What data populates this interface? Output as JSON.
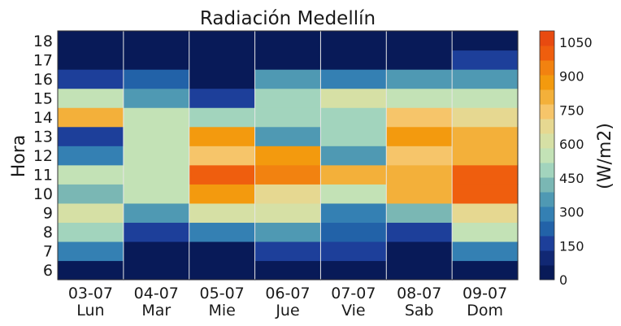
{
  "chart_data": {
    "type": "heatmap",
    "title": "Radiación Medellín",
    "ylabel": "Hora",
    "colorbar_label": "(W/m2)",
    "x_categories": [
      {
        "date": "03-07",
        "day": "Lun"
      },
      {
        "date": "04-07",
        "day": "Mar"
      },
      {
        "date": "05-07",
        "day": "Mie"
      },
      {
        "date": "06-07",
        "day": "Jue"
      },
      {
        "date": "07-07",
        "day": "Vie"
      },
      {
        "date": "08-07",
        "day": "Sab"
      },
      {
        "date": "09-07",
        "day": "Dom"
      }
    ],
    "y_categories": [
      "6",
      "7",
      "8",
      "9",
      "10",
      "11",
      "12",
      "13",
      "14",
      "15",
      "16",
      "17",
      "18"
    ],
    "values": [
      [
        60,
        10,
        10,
        10,
        10,
        10,
        60
      ],
      [
        290,
        10,
        10,
        180,
        130,
        10,
        290
      ],
      [
        500,
        150,
        290,
        340,
        220,
        180,
        540
      ],
      [
        610,
        380,
        590,
        590,
        290,
        430,
        700
      ],
      [
        430,
        540,
        870,
        700,
        570,
        840,
        1000
      ],
      [
        540,
        570,
        1000,
        920,
        790,
        840,
        1000
      ],
      [
        290,
        570,
        740,
        870,
        340,
        740,
        800
      ],
      [
        180,
        570,
        880,
        340,
        480,
        870,
        800
      ],
      [
        800,
        570,
        500,
        480,
        500,
        760,
        700
      ],
      [
        530,
        340,
        180,
        480,
        610,
        580,
        580
      ],
      [
        180,
        220,
        10,
        340,
        290,
        340,
        380
      ],
      [
        60,
        60,
        10,
        10,
        60,
        60,
        180
      ],
      [
        10,
        10,
        10,
        10,
        10,
        10,
        10
      ]
    ],
    "colorbar_ticks": [
      0,
      150,
      300,
      450,
      600,
      750,
      900,
      1050
    ],
    "vmin": 0,
    "vmax": 1100,
    "colors": [
      "#081a58",
      "#112874",
      "#1d3f9a",
      "#2262a8",
      "#3480b3",
      "#4f99b3",
      "#7ab7b4",
      "#a2d4bd",
      "#c3e2b6",
      "#d6e0a5",
      "#e6d891",
      "#f6c56a",
      "#f3b03a",
      "#f39a0e",
      "#f28210",
      "#ef5e0e",
      "#e84a10"
    ],
    "grid": false
  }
}
